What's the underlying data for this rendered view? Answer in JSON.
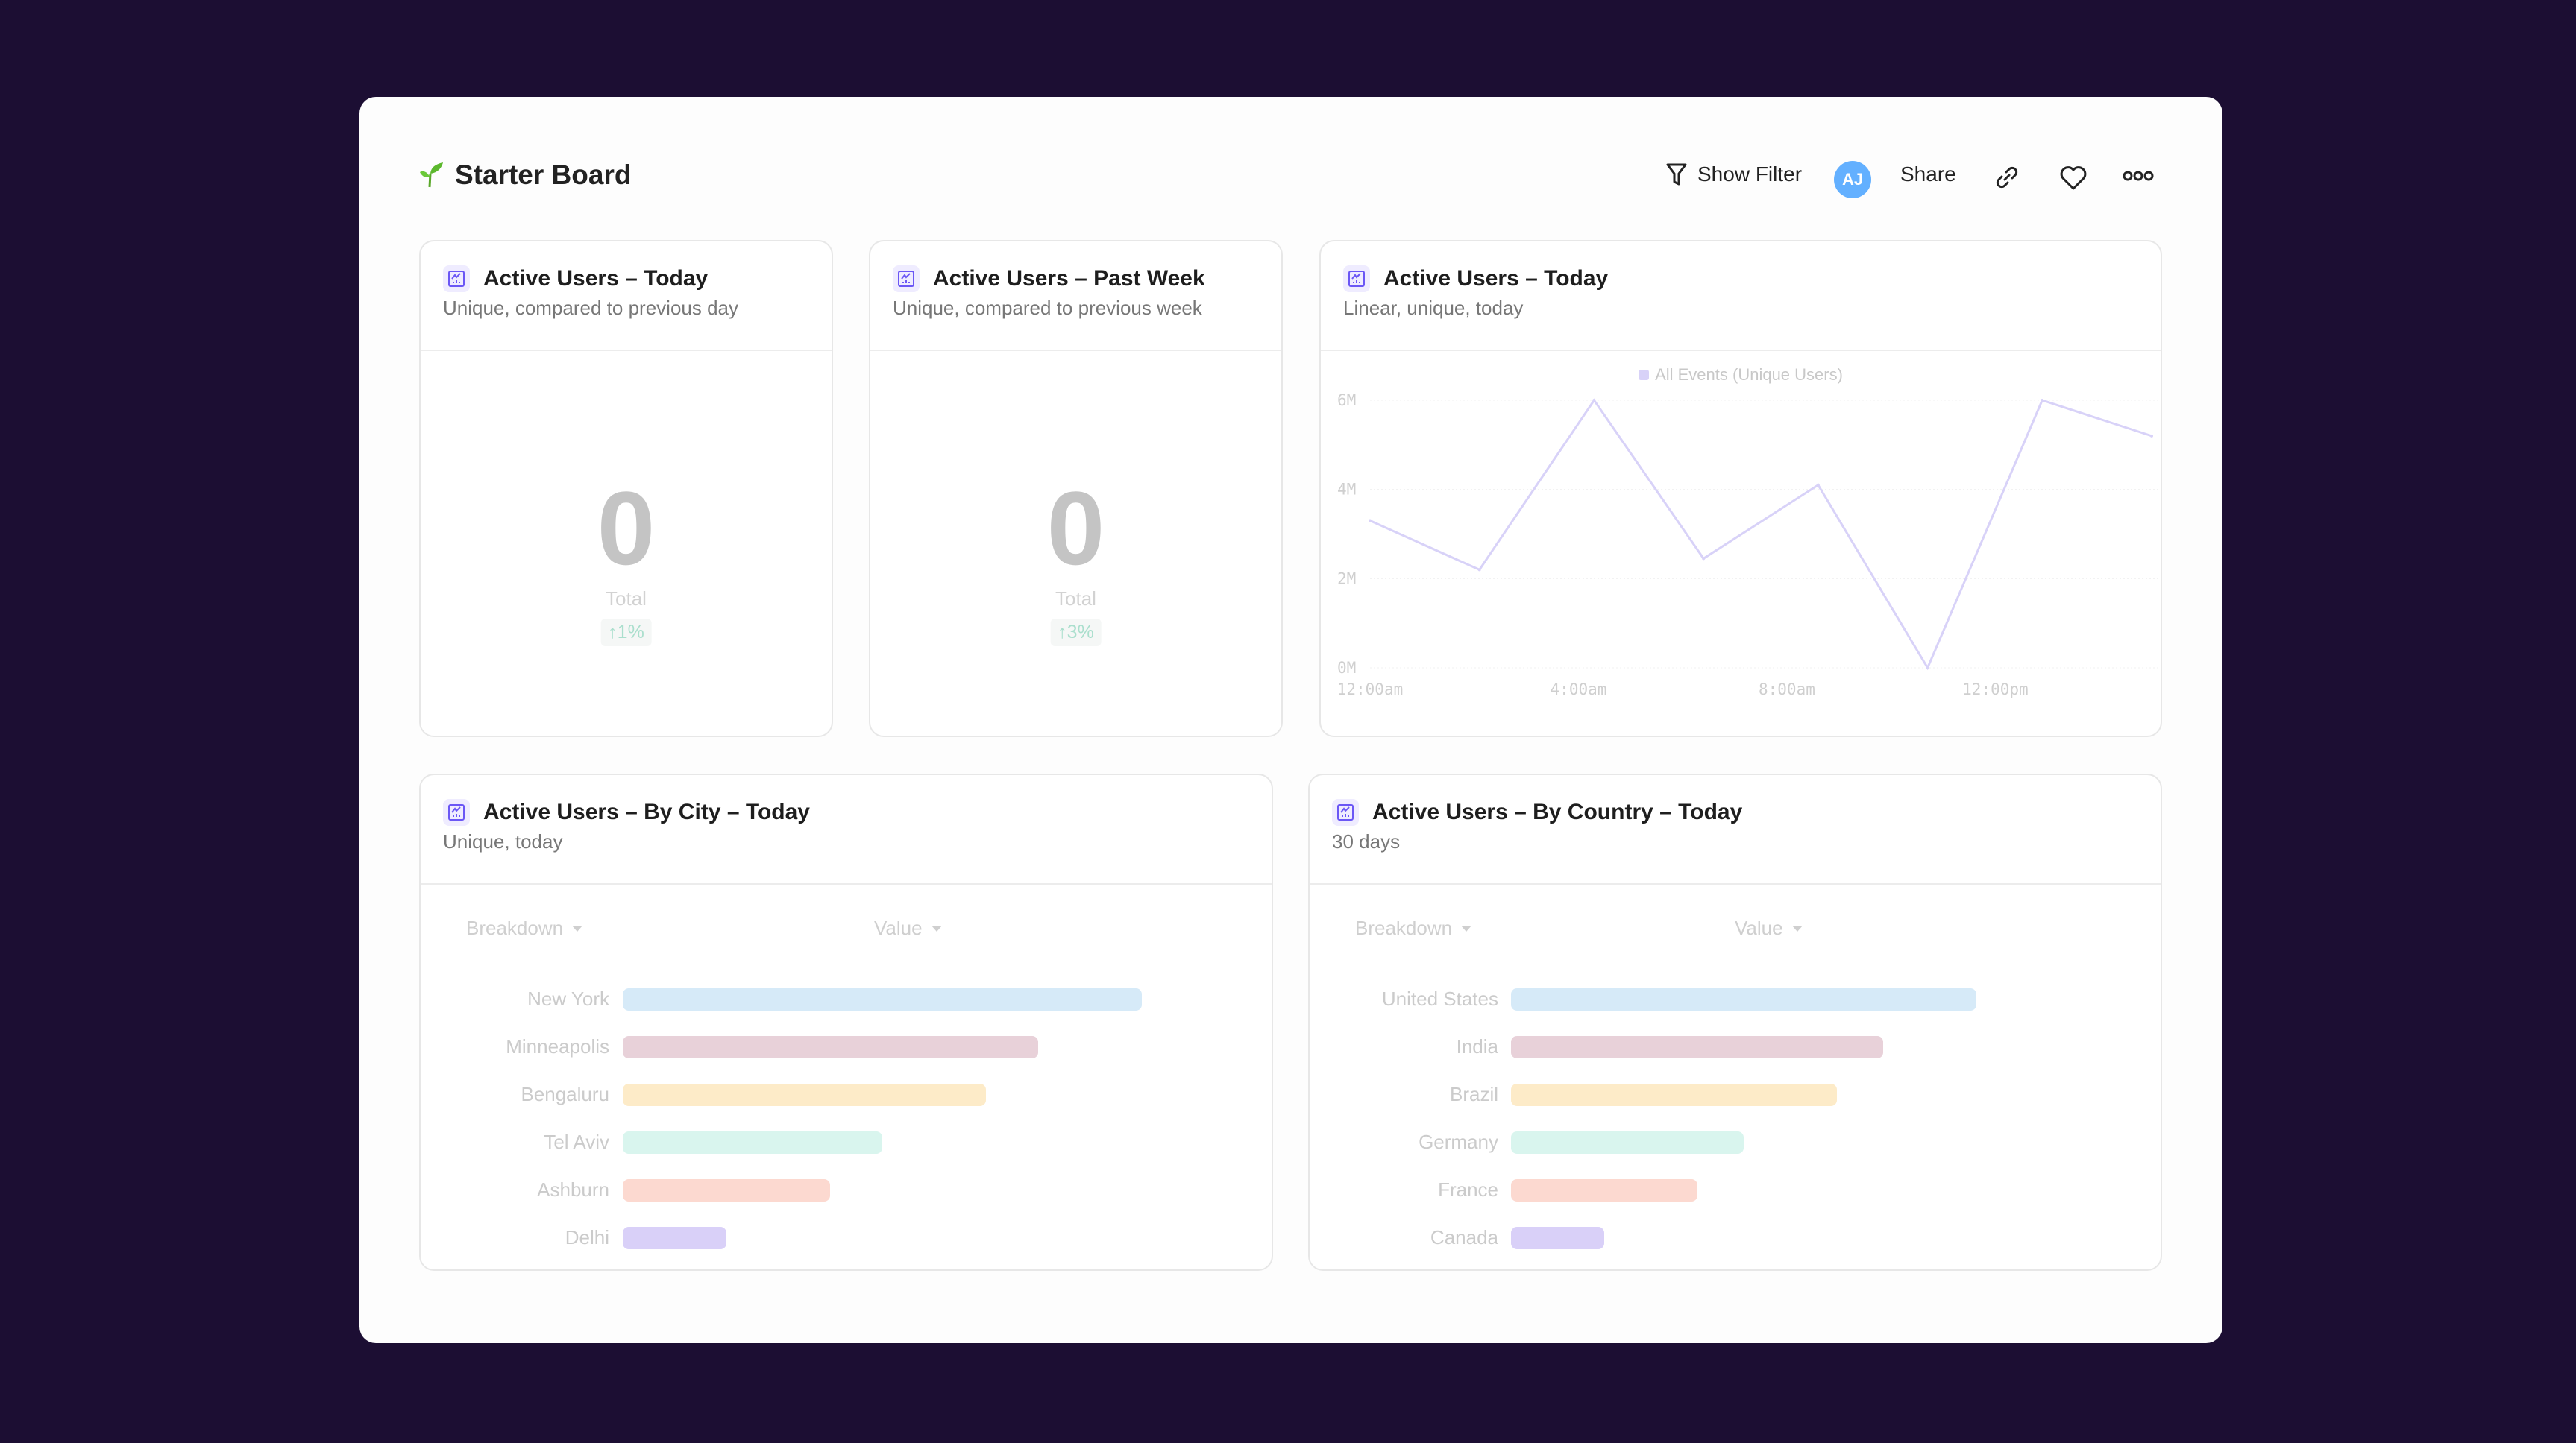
{
  "header": {
    "title": "Starter Board",
    "show_filter": "Show Filter",
    "avatar": "AJ",
    "share": "Share",
    "icons": [
      "sprout-icon",
      "filter-icon",
      "link-icon",
      "heart-icon",
      "more-icon"
    ]
  },
  "tiles": [
    {
      "title": "Active Users – Today",
      "subtitle": "Unique, compared to previous day",
      "value": "0",
      "label": "Total",
      "change": "↑1%"
    },
    {
      "title": "Active Users – Past Week",
      "subtitle": "Unique, compared to previous week",
      "value": "0",
      "label": "Total",
      "change": "↑3%"
    },
    {
      "title": "Active Users – Today",
      "subtitle": "Linear, unique, today"
    },
    {
      "title": "Active Users – By City – Today",
      "subtitle": "Unique, today",
      "breakdown": "Breakdown",
      "value_col": "Value"
    },
    {
      "title": "Active Users – By Country – Today",
      "subtitle": "30 days",
      "breakdown": "Breakdown",
      "value_col": "Value"
    }
  ],
  "colors": {
    "accent": "#6b57f5",
    "line": "#d8d2f8",
    "bars": [
      "#d6eaf8",
      "#e8d1d9",
      "#fdebc8",
      "#d9f5ee",
      "#fcd9d0",
      "#d9d0f8"
    ]
  },
  "chart_data": [
    {
      "type": "line",
      "legend": "All Events (Unique Users)",
      "legend_position": "top",
      "x_hours": [
        0,
        2.1,
        4.3,
        6.4,
        8.6,
        10.7,
        12.9,
        15.0
      ],
      "values": [
        3.3,
        2.2,
        6.0,
        2.45,
        4.1,
        0,
        6.0,
        5.2
      ],
      "xticks": [
        {
          "at": 0,
          "label": "12:00am"
        },
        {
          "at": 4,
          "label": "4:00am"
        },
        {
          "at": 8,
          "label": "8:00am"
        },
        {
          "at": 12,
          "label": "12:00pm"
        }
      ],
      "yticks": [
        "0M",
        "2M",
        "4M",
        "6M"
      ],
      "ylim": [
        0,
        6
      ],
      "grid": true
    },
    {
      "type": "bar",
      "orientation": "horizontal",
      "categories": [
        "New York",
        "Minneapolis",
        "Bengaluru",
        "Tel Aviv",
        "Ashburn",
        "Delhi"
      ],
      "relative_values": [
        100,
        80,
        70,
        50,
        40,
        20
      ]
    },
    {
      "type": "bar",
      "orientation": "horizontal",
      "categories": [
        "United States",
        "India",
        "Brazil",
        "Germany",
        "France",
        "Canada"
      ],
      "relative_values": [
        100,
        80,
        70,
        50,
        40,
        20
      ]
    }
  ]
}
